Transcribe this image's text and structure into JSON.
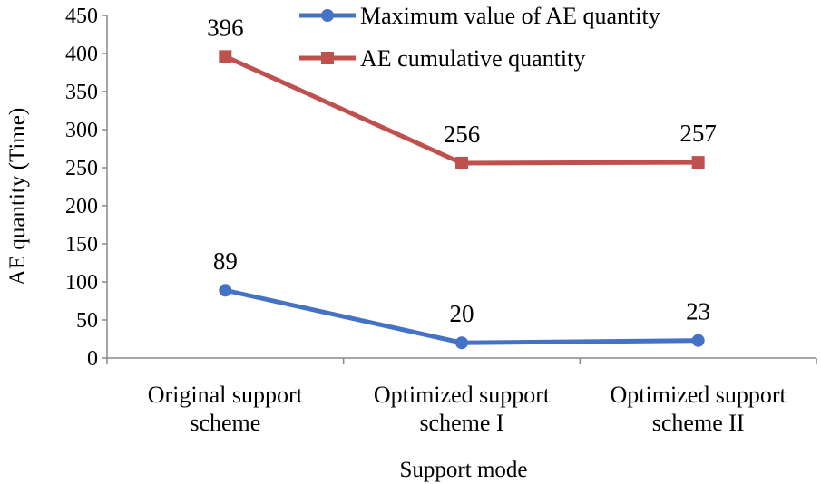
{
  "chart_data": {
    "type": "line",
    "title": "",
    "xlabel": "Support mode",
    "ylabel": "AE  quantity (Time)",
    "ylim": [
      0,
      450
    ],
    "ytick_step": 50,
    "grid": false,
    "legend_position": "top-right",
    "categories": [
      [
        "Original support",
        "scheme"
      ],
      [
        "Optimized support",
        "scheme I"
      ],
      [
        "Optimized support",
        "scheme II"
      ]
    ],
    "series": [
      {
        "name": "Maximum value of AE quantity",
        "values": [
          89,
          20,
          23
        ],
        "labels": [
          "89",
          "20",
          "23"
        ],
        "color": "#4472c4",
        "marker": "circle"
      },
      {
        "name": "AE cumulative quantity",
        "values": [
          396,
          256,
          257
        ],
        "labels": [
          "396",
          "256",
          "257"
        ],
        "color": "#c0504d",
        "marker": "square"
      }
    ]
  }
}
